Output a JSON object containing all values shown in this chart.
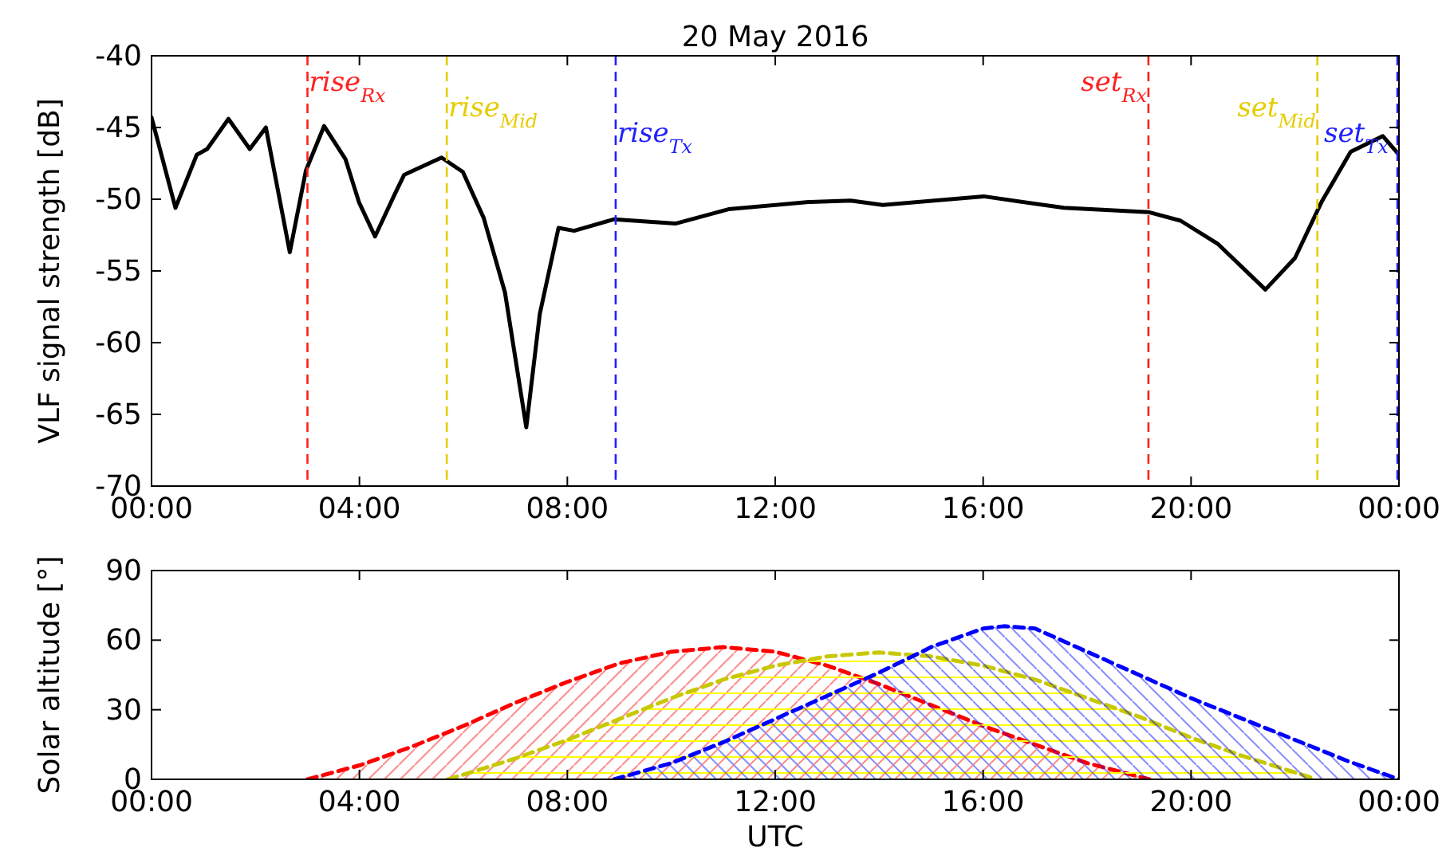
{
  "chart_data": [
    {
      "type": "line",
      "title": "20 May 2016",
      "ylabel": "VLF signal strength [dB]",
      "xlim": [
        0,
        24
      ],
      "xticks": [
        {
          "value": 0,
          "label": "00:00"
        },
        {
          "value": 4,
          "label": "04:00"
        },
        {
          "value": 8,
          "label": "08:00"
        },
        {
          "value": 12,
          "label": "12:00"
        },
        {
          "value": 16,
          "label": "16:00"
        },
        {
          "value": 20,
          "label": "20:00"
        },
        {
          "value": 24,
          "label": "00:00"
        }
      ],
      "ylim": [
        -70,
        -40
      ],
      "yticks": [
        -70,
        -65,
        -60,
        -55,
        -50,
        -45,
        -40
      ],
      "grid": false,
      "line_style": "solid",
      "x": [
        0,
        0.46,
        0.87,
        1.07,
        1.48,
        1.89,
        2.2,
        2.66,
        2.97,
        3.32,
        3.73,
        3.99,
        4.3,
        4.66,
        4.86,
        5.58,
        5.99,
        6.39,
        6.8,
        7.21,
        7.47,
        7.83,
        8.13,
        8.9,
        10.08,
        11.1,
        12.64,
        13.45,
        14.07,
        16.01,
        17.55,
        19.18,
        19.8,
        20.51,
        21.43,
        22.0,
        22.51,
        23.07,
        23.69,
        24.0
      ],
      "series": [
        {
          "color": "#000000",
          "values": [
            -44.3,
            -50.6,
            -46.9,
            -46.5,
            -44.4,
            -46.5,
            -45,
            -53.7,
            -48,
            -44.9,
            -47.2,
            -50.2,
            -52.6,
            -49.8,
            -48.3,
            -47.1,
            -48.1,
            -51.3,
            -56.5,
            -65.9,
            -58,
            -52,
            -52.2,
            -51.4,
            -51.7,
            -50.7,
            -50.2,
            -50.1,
            -50.4,
            -49.8,
            -50.6,
            -50.9,
            -51.5,
            -53.1,
            -56.3,
            -54.1,
            -50.2,
            -46.7,
            -45.6,
            -46.9
          ]
        }
      ],
      "ref_lines": [
        {
          "axis": "x",
          "value": 3.0,
          "label": "rise$_{Rx}$",
          "color": "#ff2020",
          "line_style": "dashed"
        },
        {
          "axis": "x",
          "value": 5.68,
          "label": "rise$_{Mid}$",
          "color": "#e6cc00",
          "line_style": "dashed"
        },
        {
          "axis": "x",
          "value": 8.93,
          "label": "rise$_{Tx}$",
          "color": "#2020ff",
          "line_style": "dashed"
        },
        {
          "axis": "x",
          "value": 19.18,
          "label": "set$_{Rx}$",
          "color": "#ff2020",
          "line_style": "dashed"
        },
        {
          "axis": "x",
          "value": 22.43,
          "label": "set$_{Mid}$",
          "color": "#e6cc00",
          "line_style": "dashed"
        },
        {
          "axis": "x",
          "value": 23.97,
          "label": "set$_{Tx}$",
          "color": "#2020ff",
          "line_style": "dashed"
        }
      ]
    },
    {
      "type": "area",
      "xlabel": "UTC",
      "ylabel": "Solar altitude [°]",
      "xlim": [
        0,
        24
      ],
      "xticks": [
        {
          "value": 0,
          "label": "00:00"
        },
        {
          "value": 4,
          "label": "04:00"
        },
        {
          "value": 8,
          "label": "08:00"
        },
        {
          "value": 12,
          "label": "12:00"
        },
        {
          "value": 16,
          "label": "16:00"
        },
        {
          "value": 20,
          "label": "20:00"
        },
        {
          "value": 24,
          "label": "00:00"
        }
      ],
      "ylim": [
        0,
        90
      ],
      "yticks": [
        0,
        30,
        60,
        90
      ],
      "grid": false,
      "line_style": "dashed",
      "series": [
        {
          "color": "#ff0000",
          "x": [
            3.0,
            4,
            5,
            6,
            7,
            8,
            9,
            10,
            11,
            12,
            13,
            14,
            15,
            16,
            17,
            18,
            19.2
          ],
          "values": [
            0,
            6,
            14,
            23,
            33,
            42,
            50,
            55,
            57,
            55,
            49,
            41,
            32,
            23,
            15,
            7,
            0
          ]
        },
        {
          "color": "#c8c800",
          "x": [
            5.7,
            6,
            7,
            8,
            9,
            10,
            11,
            12,
            13,
            14,
            15,
            16,
            17,
            18,
            19,
            20,
            21,
            22,
            22.4
          ],
          "values": [
            0,
            2,
            9,
            17,
            26,
            35,
            43,
            49,
            53,
            54.7,
            53,
            49,
            43,
            35,
            27,
            18,
            10,
            3,
            0
          ]
        },
        {
          "color": "#0000ff",
          "x": [
            8.9,
            10,
            11,
            12,
            13,
            14,
            15,
            16,
            16.4,
            17,
            18,
            19,
            20,
            21,
            22,
            23,
            24
          ],
          "values": [
            0,
            7,
            16,
            26,
            36,
            46,
            57,
            65,
            66,
            65,
            55,
            45,
            35,
            26,
            17,
            8,
            0
          ]
        }
      ]
    }
  ]
}
